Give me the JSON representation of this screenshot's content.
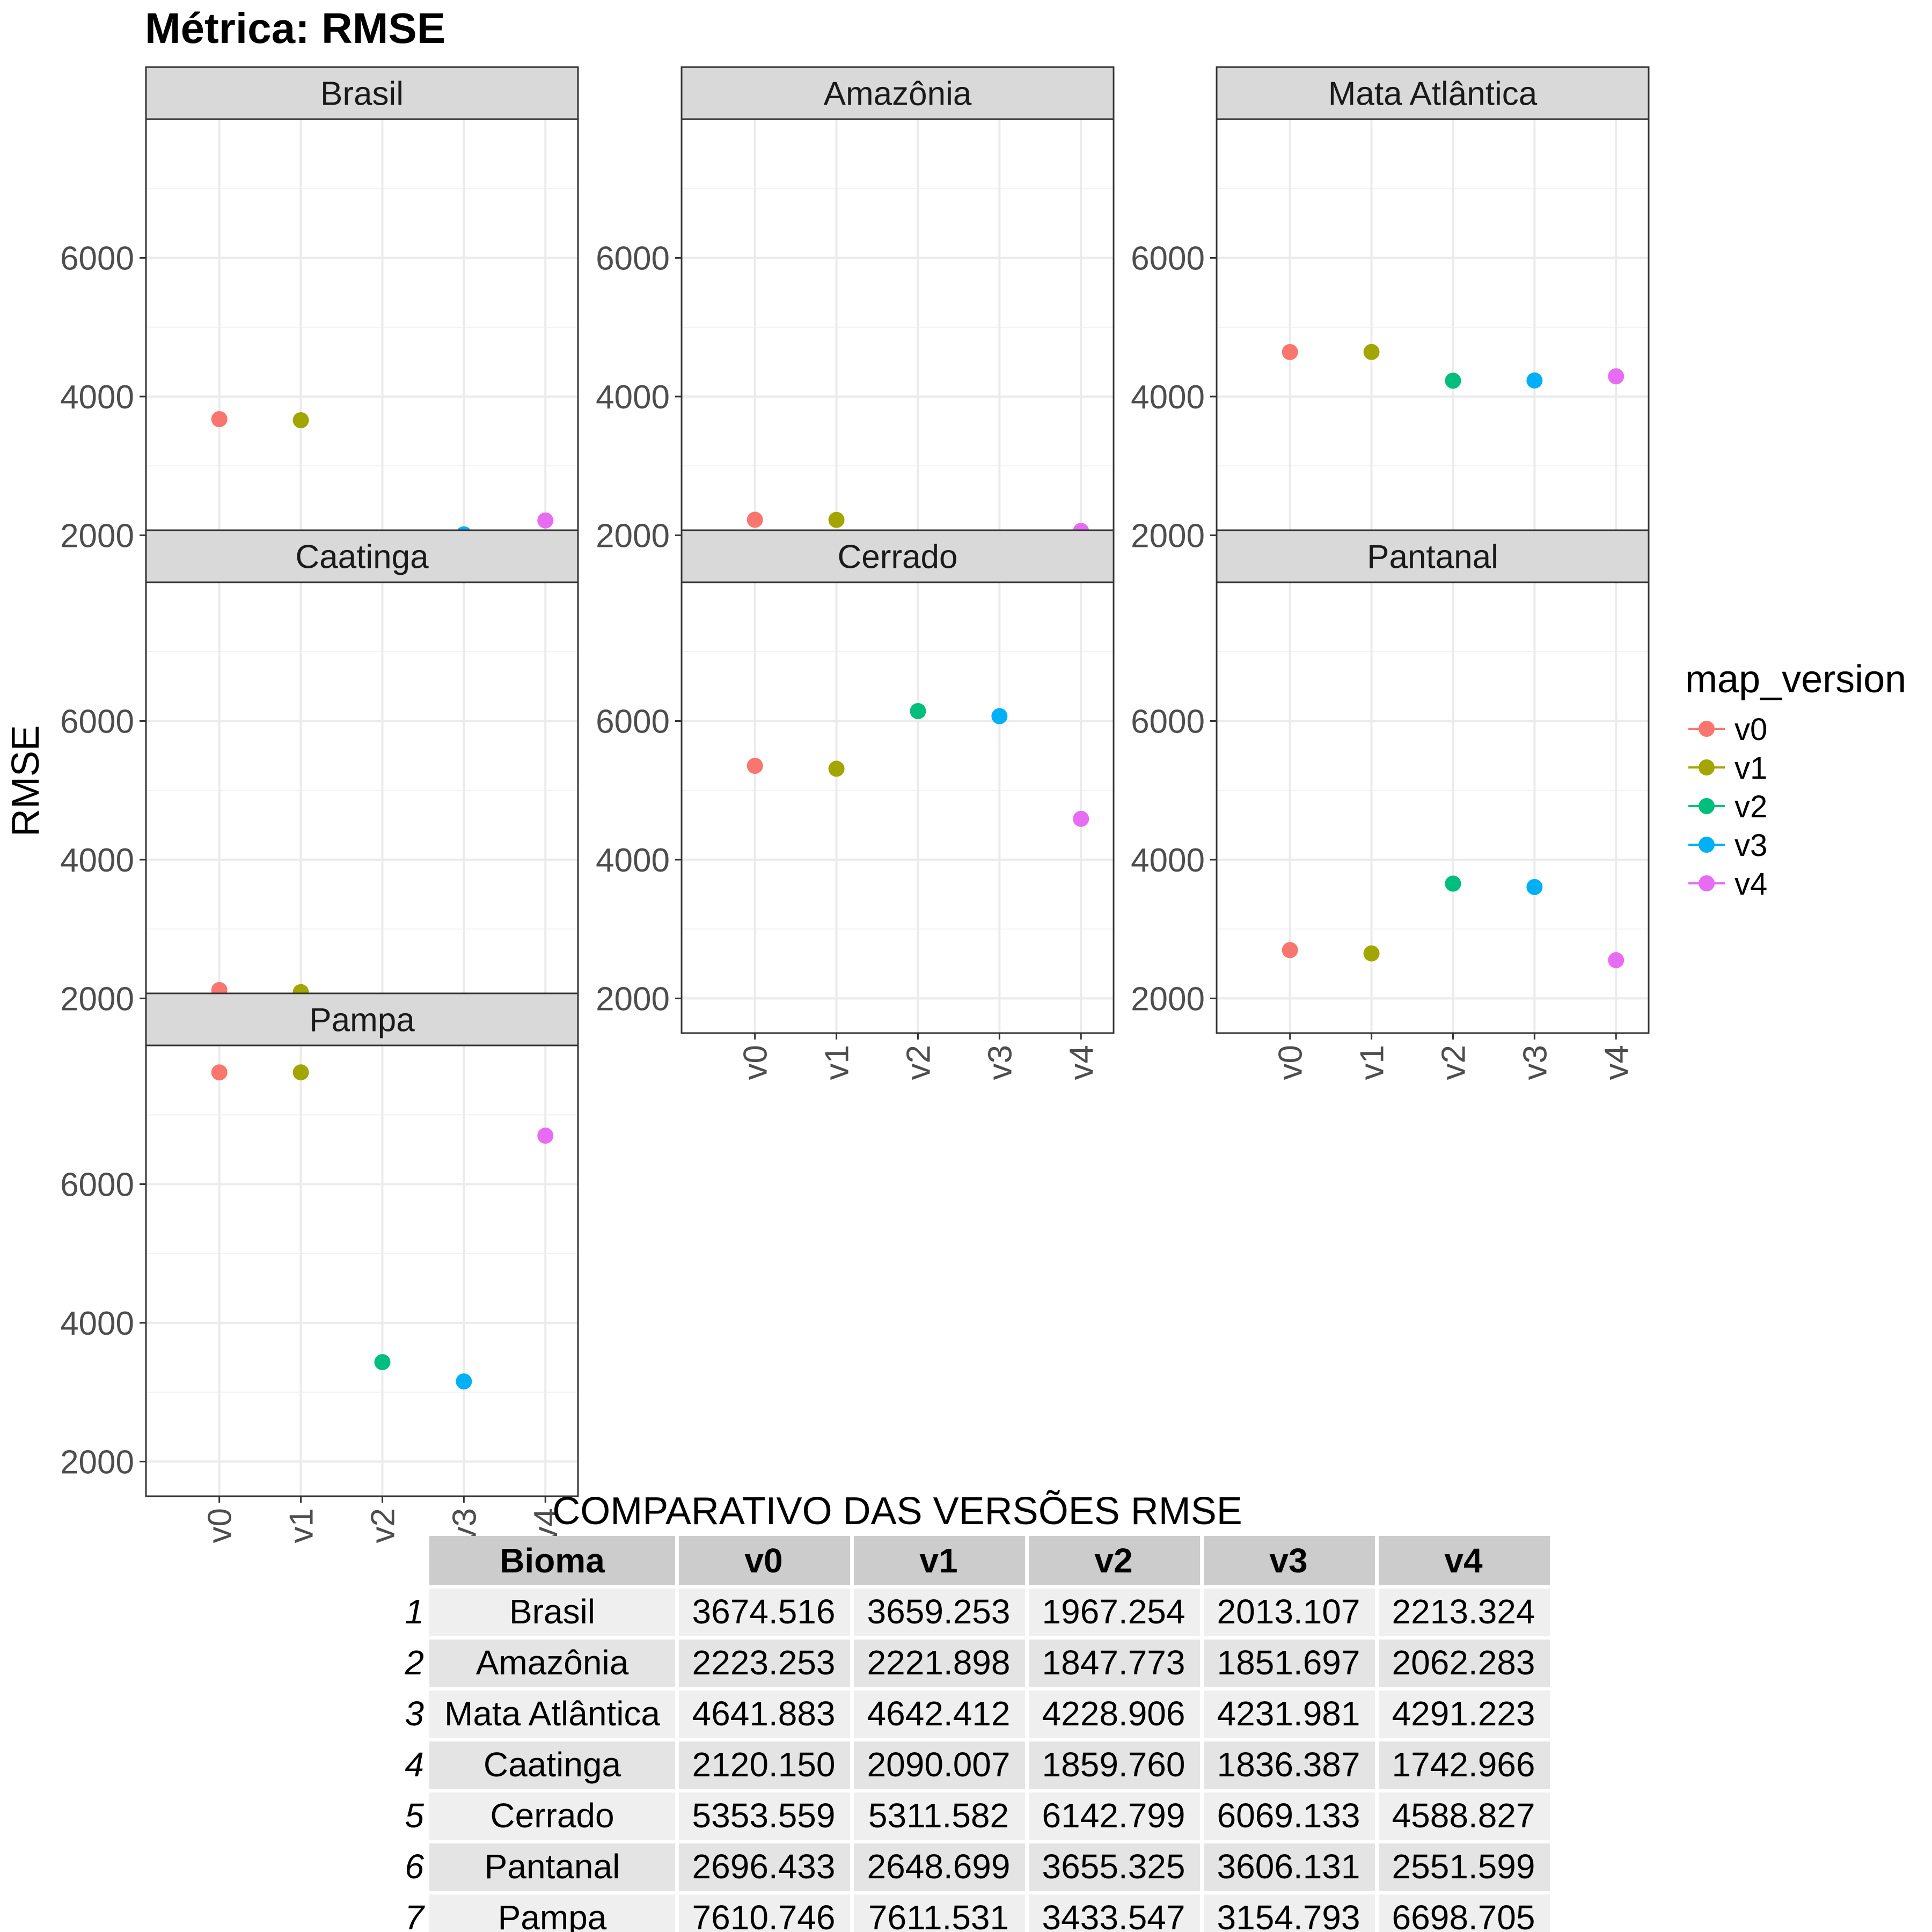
{
  "chart_data": {
    "type": "scatter",
    "title": "Métrica: RMSE",
    "ylabel": "RMSE",
    "xlabel": "",
    "categories": [
      "v0",
      "v1",
      "v2",
      "v3",
      "v4"
    ],
    "ylim": [
      1500,
      8000
    ],
    "yticks": [
      2000,
      4000,
      6000
    ],
    "grid": true,
    "legend": {
      "title": "map_version",
      "position": "right",
      "items": [
        {
          "label": "v0",
          "color": "#F8766D"
        },
        {
          "label": "v1",
          "color": "#A3A500"
        },
        {
          "label": "v2",
          "color": "#00BF7D"
        },
        {
          "label": "v3",
          "color": "#00B0F6"
        },
        {
          "label": "v4",
          "color": "#E76BF3"
        }
      ]
    },
    "panels": [
      {
        "name": "Brasil",
        "values": [
          3674.516,
          3659.253,
          1967.254,
          2013.107,
          2213.324
        ]
      },
      {
        "name": "Amazônia",
        "values": [
          2223.253,
          2221.898,
          1847.773,
          1851.697,
          2062.283
        ]
      },
      {
        "name": "Mata Atlântica",
        "values": [
          4641.883,
          4642.412,
          4228.906,
          4231.981,
          4291.223
        ]
      },
      {
        "name": "Caatinga",
        "values": [
          2120.15,
          2090.007,
          1859.76,
          1836.387,
          1742.966
        ]
      },
      {
        "name": "Cerrado",
        "values": [
          5353.559,
          5311.582,
          6142.799,
          6069.133,
          4588.827
        ]
      },
      {
        "name": "Pantanal",
        "values": [
          2696.433,
          2648.699,
          3655.325,
          3606.131,
          2551.599
        ]
      },
      {
        "name": "Pampa",
        "values": [
          7610.746,
          7611.531,
          3433.547,
          3154.793,
          6698.705
        ]
      }
    ]
  },
  "table": {
    "title": "COMPARATIVO DAS VERSÕES RMSE",
    "headers": [
      "Bioma",
      "v0",
      "v1",
      "v2",
      "v3",
      "v4"
    ],
    "rows": [
      [
        "1",
        "Brasil",
        "3674.516",
        "3659.253",
        "1967.254",
        "2013.107",
        "2213.324"
      ],
      [
        "2",
        "Amazônia",
        "2223.253",
        "2221.898",
        "1847.773",
        "1851.697",
        "2062.283"
      ],
      [
        "3",
        "Mata Atlântica",
        "4641.883",
        "4642.412",
        "4228.906",
        "4231.981",
        "4291.223"
      ],
      [
        "4",
        "Caatinga",
        "2120.150",
        "2090.007",
        "1859.760",
        "1836.387",
        "1742.966"
      ],
      [
        "5",
        "Cerrado",
        "5353.559",
        "5311.582",
        "6142.799",
        "6069.133",
        "4588.827"
      ],
      [
        "6",
        "Pantanal",
        "2696.433",
        "2648.699",
        "3655.325",
        "3606.131",
        "2551.599"
      ],
      [
        "7",
        "Pampa",
        "7610.746",
        "7611.531",
        "3433.547",
        "3154.793",
        "6698.705"
      ]
    ]
  }
}
